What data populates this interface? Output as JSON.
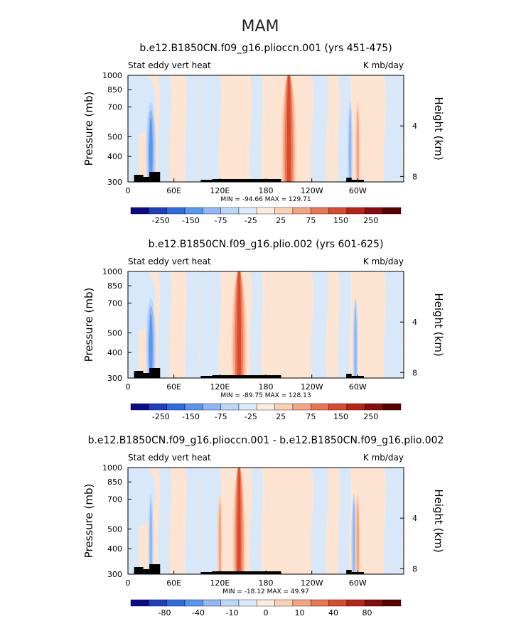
{
  "figure": {
    "title": "MAM"
  },
  "colors": {
    "positive": "#fde4d2",
    "negative": "#d6e8fa",
    "land": "#000000",
    "colorbar": [
      "#0a0a8c",
      "#1f3fc0",
      "#2e6de0",
      "#5a95ef",
      "#8fb8f5",
      "#bcd6fa",
      "#dceafd",
      "#fdebdd",
      "#fbcfb3",
      "#f4a582",
      "#ea7654",
      "#d94a2e",
      "#b8231a",
      "#8a0b0b",
      "#5a0000"
    ]
  },
  "chart_data": [
    {
      "type": "heatmap",
      "title": "b.e12.B1850CN.f09_g16.plioccn.001 (yrs 451-475)",
      "left_label": "Stat eddy vert heat",
      "right_label": "K mb/day",
      "ylabel": "Pressure (mb)",
      "ylabel_right": "Height (km)",
      "x_ticks": [
        "0",
        "60E",
        "120E",
        "180",
        "120W",
        "60W"
      ],
      "x_tick_values": [
        0,
        60,
        120,
        180,
        240,
        300
      ],
      "xlim": [
        0,
        360
      ],
      "y_ticks": [
        "300",
        "400",
        "500",
        "700",
        "850",
        "1000"
      ],
      "y_tick_values": [
        300,
        400,
        500,
        700,
        850,
        1000
      ],
      "ylim": [
        1000,
        300
      ],
      "height_ticks": [
        "8",
        "4"
      ],
      "height_tick_values": [
        8,
        4
      ],
      "stats": "MIN = -94.66   MAX = 129.71",
      "colorbar_labels": [
        "-250",
        "-150",
        "-75",
        "-25",
        "25",
        "75",
        "150",
        "250"
      ],
      "features": [
        {
          "lon": 210,
          "lon_width": 3,
          "sign": 1,
          "strength": 1.0
        },
        {
          "lon": 30,
          "lon_width": 2.5,
          "sign": -1,
          "strength": 0.7
        },
        {
          "lon": 290,
          "lon_width": 2,
          "sign": -1,
          "strength": 0.6
        },
        {
          "lon": 300,
          "lon_width": 2,
          "sign": 1,
          "strength": 0.5
        }
      ]
    },
    {
      "type": "heatmap",
      "title": "b.e12.B1850CN.f09_g16.plio.002 (yrs 601-625)",
      "left_label": "Stat eddy vert heat",
      "right_label": "K mb/day",
      "ylabel": "Pressure (mb)",
      "ylabel_right": "Height (km)",
      "x_ticks": [
        "0",
        "60E",
        "120E",
        "180",
        "120W",
        "60W"
      ],
      "x_tick_values": [
        0,
        60,
        120,
        180,
        240,
        300
      ],
      "xlim": [
        0,
        360
      ],
      "y_ticks": [
        "300",
        "400",
        "500",
        "700",
        "850",
        "1000"
      ],
      "y_tick_values": [
        300,
        400,
        500,
        700,
        850,
        1000
      ],
      "ylim": [
        1000,
        300
      ],
      "height_ticks": [
        "8",
        "4"
      ],
      "height_tick_values": [
        8,
        4
      ],
      "stats": "MIN = -89.75   MAX = 128.13",
      "colorbar_labels": [
        "-250",
        "-150",
        "-75",
        "-25",
        "25",
        "75",
        "150",
        "250"
      ],
      "features": [
        {
          "lon": 145,
          "lon_width": 3,
          "sign": 1,
          "strength": 1.0
        },
        {
          "lon": 30,
          "lon_width": 2.5,
          "sign": -1,
          "strength": 0.7
        },
        {
          "lon": 297,
          "lon_width": 2,
          "sign": -1,
          "strength": 0.6
        }
      ]
    },
    {
      "type": "heatmap",
      "title": "b.e12.B1850CN.f09_g16.plioccn.001 - b.e12.B1850CN.f09_g16.plio.002",
      "left_label": "Stat eddy vert heat",
      "right_label": "K mb/day",
      "ylabel": "Pressure (mb)",
      "ylabel_right": "Height (km)",
      "x_ticks": [
        "0",
        "60E",
        "120E",
        "180",
        "120W",
        "60W"
      ],
      "x_tick_values": [
        0,
        60,
        120,
        180,
        240,
        300
      ],
      "xlim": [
        0,
        360
      ],
      "y_ticks": [
        "300",
        "400",
        "500",
        "700",
        "850",
        "1000"
      ],
      "y_tick_values": [
        300,
        400,
        500,
        700,
        850,
        1000
      ],
      "ylim": [
        1000,
        300
      ],
      "height_ticks": [
        "8",
        "4"
      ],
      "height_tick_values": [
        8,
        4
      ],
      "stats": "MIN = -18.12   MAX = 49.97",
      "colorbar_labels": [
        "-80",
        "-40",
        "-10",
        "0",
        "10",
        "40",
        "80"
      ],
      "features": [
        {
          "lon": 145,
          "lon_width": 2.5,
          "sign": 1,
          "strength": 0.9
        },
        {
          "lon": 120,
          "lon_width": 2,
          "sign": 1,
          "strength": 0.5
        },
        {
          "lon": 30,
          "lon_width": 2,
          "sign": -1,
          "strength": 0.6
        },
        {
          "lon": 295,
          "lon_width": 2,
          "sign": -1,
          "strength": 0.5
        },
        {
          "lon": 300,
          "lon_width": 2,
          "sign": 1,
          "strength": 0.5
        }
      ]
    }
  ]
}
